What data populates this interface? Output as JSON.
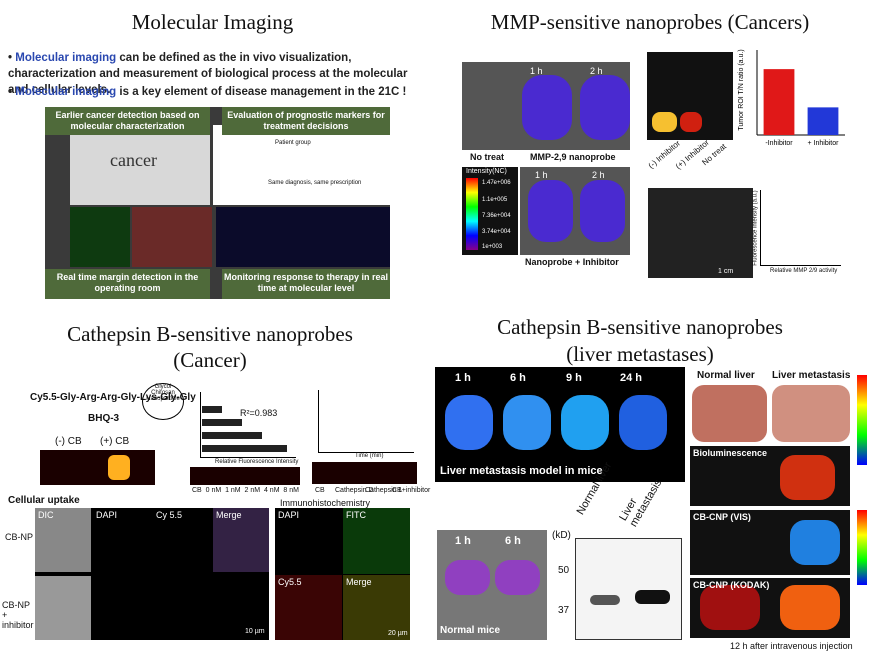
{
  "panels": [
    {
      "title": "Molecular Imaging",
      "bullets": [
        {
          "highlight": "Molecular imaging",
          "text": "can be defined as the in vivo visualization, characterization and measurement of biological process at the molecular and cellular levels."
        },
        {
          "highlight": "Molecular imaging",
          "text": "is a key element of disease management in the 21C !"
        }
      ],
      "captions": [
        "Earlier cancer detection based on molecular characterization",
        "Evaluation of prognostic markers for treatment decisions",
        "Real time margin detection in the operating room",
        "Monitoring response to therapy in real time at molecular level"
      ],
      "figure_text": [
        "cancer",
        "Patient group",
        "Same diagnosis, same prescription"
      ]
    },
    {
      "title": "MMP-sensitive nanoprobes (Cancers)",
      "labels": [
        "1 h",
        "2 h",
        "No treat",
        "MMP-2,9 nanoprobe",
        "1 h",
        "2 h",
        "Nanoprobe + Inhibitor",
        "(-) Inhibitor",
        "(+) Inhibitor",
        "No treat",
        "1 cm",
        "Relative MMP 2/9 activity",
        "Fluorescence intensity (a.u.)"
      ],
      "colorbar": [
        "Intensity(NC)",
        "1.47e+006",
        "1.1e+005",
        "7.36e+004",
        "3.74e+004",
        "1e+003"
      ],
      "bar_chart": {
        "ylabel": "Tumor ROI T/N ratio (a.u.)",
        "categories": [
          "-Inhibitor",
          "+ Inhibitor"
        ],
        "values": [
          15.5,
          6.5
        ],
        "colors": [
          "#e01818",
          "#2238d8"
        ],
        "ylim": [
          0,
          20
        ]
      }
    },
    {
      "title": [
        "Cathepsin B-sensitive nanoprobes",
        "(Cancer)"
      ],
      "labels": [
        "Cy5.5-Gly-Arg-Arg-Gly-Lys-Gly-Gly",
        "BHQ-3",
        "Glycol Chitosan Nanoparticle",
        "(-) CB",
        "(+) CB",
        "R²=0.983",
        "Relative Fluorescence Intensity",
        "CB  0 nM  1 nM  2 nM  4 nM  8 nM",
        "CB",
        "Cathepsin D",
        "Cathepsin L",
        "CB+inhibitor",
        "Time (min)"
      ],
      "cellular_uptake": {
        "title": "Cellular uptake",
        "columns": [
          "DIC",
          "DAPI",
          "Cy 5.5",
          "Merge"
        ],
        "rows": [
          "CB-NP",
          "CB-NP + inhibitor"
        ],
        "scale": "10 µm"
      },
      "immunohistochemistry": {
        "title": "Immunohistochemistry",
        "panels": [
          "DAPI",
          "FITC",
          "Cy5.5",
          "Merge"
        ],
        "scale": "20 µm"
      }
    },
    {
      "title": [
        "Cathepsin B-sensitive nanoprobes",
        "(liver metastases)"
      ],
      "time_labels": [
        "1 h",
        "6 h",
        "9 h",
        "24 h"
      ],
      "model_caption": "Liver metastasis model in mice",
      "normal_times": [
        "1 h",
        "6 h"
      ],
      "normal_caption": "Normal mice",
      "blot": {
        "unit": "(kD)",
        "lanes": [
          "Normal liver",
          "Liver metastasis"
        ],
        "markers": [
          50,
          37
        ]
      },
      "organ_headers": [
        "Normal liver",
        "Liver metastasis"
      ],
      "organ_rows": [
        "Bioluminescence",
        "CB-CNP (VIS)",
        "CB-CNP (KODAK)"
      ],
      "footnote": "12 h after intravenous injection"
    }
  ]
}
